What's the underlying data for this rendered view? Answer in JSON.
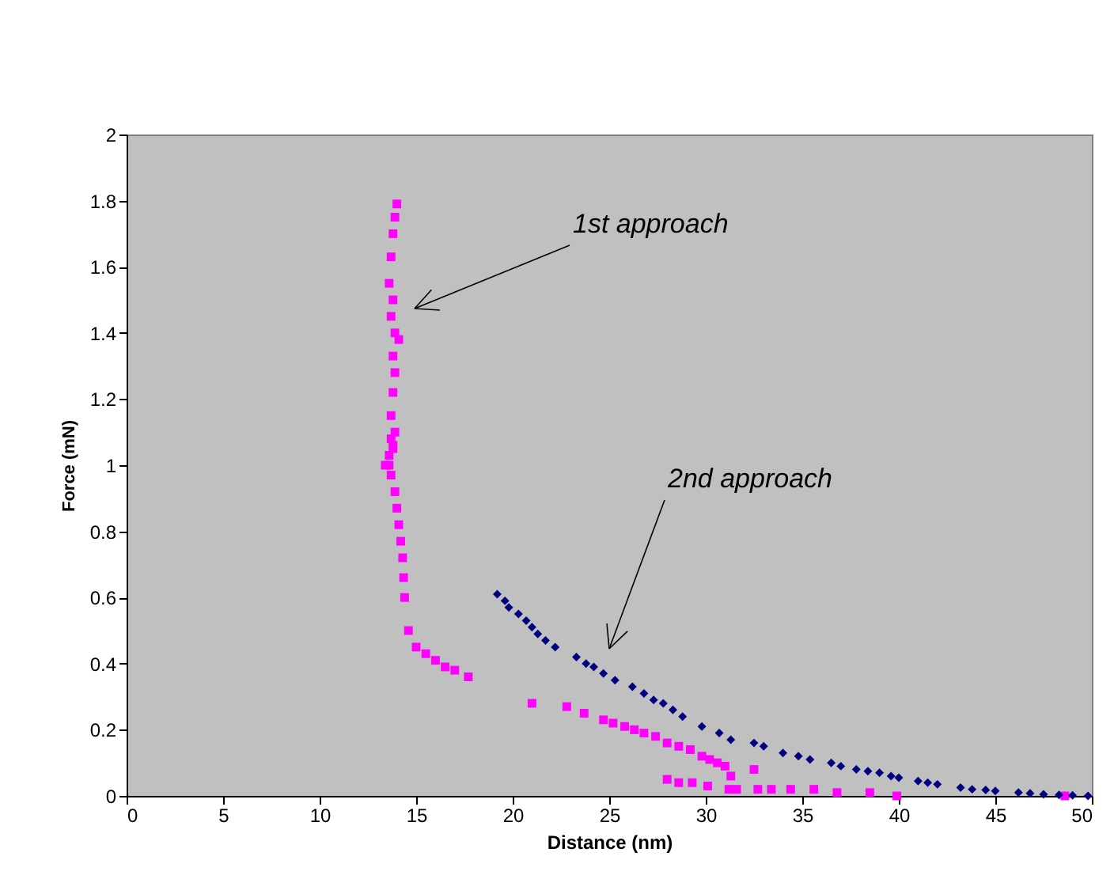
{
  "chart_data": {
    "type": "scatter",
    "xlabel": "Distance (nm)",
    "ylabel": "Force (mN)",
    "xlim": [
      0,
      50
    ],
    "xticks": [
      0,
      5,
      10,
      15,
      20,
      25,
      30,
      35,
      40,
      45,
      50
    ],
    "ylim": [
      0,
      2
    ],
    "yticks": [
      0,
      0.2,
      0.4,
      0.6,
      0.8,
      1,
      1.2,
      1.4,
      1.6,
      1.8,
      2
    ],
    "grid": false,
    "legend": false,
    "series": [
      {
        "color": "#ff00ff",
        "marker": "square",
        "x": [
          14.0,
          13.9,
          13.8,
          13.7,
          13.6,
          13.8,
          13.7,
          13.9,
          14.1,
          13.8,
          13.9,
          13.8,
          13.7,
          13.9,
          13.8,
          13.7,
          13.6,
          13.8,
          13.6,
          13.4,
          13.7,
          13.9,
          14.0,
          14.1,
          14.2,
          14.3,
          14.35,
          14.4,
          14.6,
          15.0,
          15.5,
          16.0,
          16.5,
          17.0,
          17.7,
          21.0,
          22.8,
          23.7,
          24.7,
          25.2,
          25.8,
          26.3,
          26.8,
          27.4,
          28.0,
          28.6,
          29.2,
          29.8,
          30.2,
          30.6,
          31.0,
          31.3,
          32.5,
          28.0,
          28.6,
          29.3,
          30.1,
          31.2,
          31.6,
          32.7,
          33.4,
          34.4,
          35.6,
          36.8,
          38.5,
          39.9,
          48.6
        ],
        "values": [
          1.79,
          1.75,
          1.7,
          1.63,
          1.55,
          1.5,
          1.45,
          1.4,
          1.38,
          1.33,
          1.28,
          1.22,
          1.15,
          1.1,
          1.06,
          1.08,
          1.03,
          1.05,
          1.0,
          1.0,
          0.97,
          0.92,
          0.87,
          0.82,
          0.77,
          0.72,
          0.66,
          0.6,
          0.5,
          0.45,
          0.43,
          0.41,
          0.39,
          0.38,
          0.36,
          0.28,
          0.27,
          0.25,
          0.23,
          0.22,
          0.21,
          0.2,
          0.19,
          0.18,
          0.16,
          0.15,
          0.14,
          0.12,
          0.11,
          0.1,
          0.09,
          0.06,
          0.08,
          0.05,
          0.04,
          0.04,
          0.03,
          0.02,
          0.02,
          0.02,
          0.02,
          0.02,
          0.02,
          0.01,
          0.01,
          0.0,
          0.0
        ]
      },
      {
        "color": "#000080",
        "marker": "diamond",
        "x": [
          19.2,
          19.6,
          19.8,
          20.3,
          20.7,
          21.0,
          21.3,
          21.7,
          22.2,
          23.3,
          23.8,
          24.2,
          24.7,
          25.3,
          26.2,
          26.8,
          27.3,
          27.8,
          28.3,
          28.8,
          29.8,
          30.7,
          31.3,
          32.5,
          33.0,
          34.0,
          34.8,
          35.4,
          36.5,
          37.0,
          37.8,
          38.4,
          39.0,
          39.6,
          40.0,
          41.0,
          41.5,
          42.0,
          43.2,
          43.8,
          44.5,
          45.0,
          46.2,
          46.8,
          47.5,
          48.3,
          49.0,
          49.8
        ],
        "values": [
          0.61,
          0.59,
          0.57,
          0.55,
          0.53,
          0.51,
          0.49,
          0.47,
          0.45,
          0.42,
          0.4,
          0.39,
          0.37,
          0.35,
          0.33,
          0.31,
          0.29,
          0.28,
          0.26,
          0.24,
          0.21,
          0.19,
          0.17,
          0.16,
          0.15,
          0.13,
          0.12,
          0.11,
          0.1,
          0.09,
          0.08,
          0.075,
          0.07,
          0.06,
          0.055,
          0.045,
          0.04,
          0.035,
          0.025,
          0.02,
          0.018,
          0.015,
          0.01,
          0.008,
          0.005,
          0.003,
          0.002,
          0.0
        ]
      }
    ],
    "annotations": [
      "1st approach",
      "2nd approach"
    ]
  }
}
